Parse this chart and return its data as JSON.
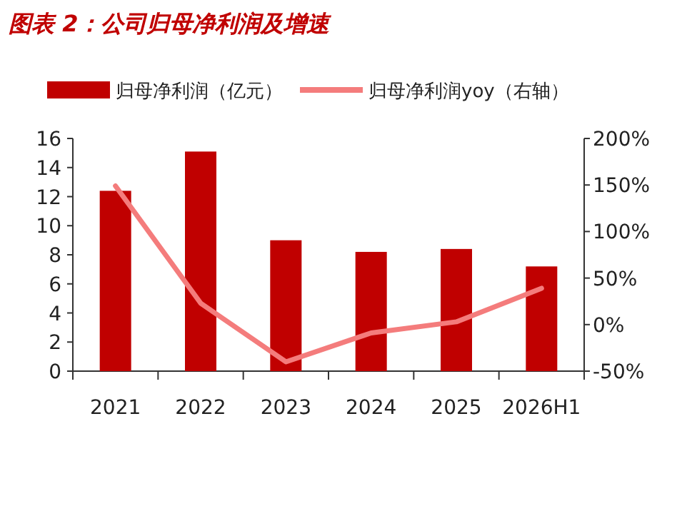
{
  "chart_data": {
    "type": "bar",
    "title": "图表 2：公司归母净利润及增速",
    "categories": [
      "2021",
      "2022",
      "2023",
      "2024",
      "2025",
      "2026H1"
    ],
    "series": [
      {
        "name": "归母净利润（亿元）",
        "color": "#c00000",
        "values": [
          12.4,
          15.1,
          9.0,
          8.2,
          8.4,
          7.2
        ]
      },
      {
        "name": "归母净利润yoy（右轴）",
        "type": "line",
        "axis": "y2",
        "color": "#f47c7c",
        "values": [
          149,
          23,
          -40,
          -9,
          3,
          39
        ]
      }
    ],
    "ylim": [
      0,
      16
    ],
    "yticks": [
      0,
      2,
      4,
      6,
      8,
      10,
      12,
      14,
      16
    ],
    "y2lim": [
      -50,
      200
    ],
    "y2ticks": [
      {
        "value": -50,
        "label": "-50%"
      },
      {
        "value": 0,
        "label": "0%"
      },
      {
        "value": 50,
        "label": "50%"
      },
      {
        "value": 100,
        "label": "100%"
      },
      {
        "value": 150,
        "label": "150%"
      },
      {
        "value": 200,
        "label": "200%"
      }
    ],
    "legend": "top"
  }
}
